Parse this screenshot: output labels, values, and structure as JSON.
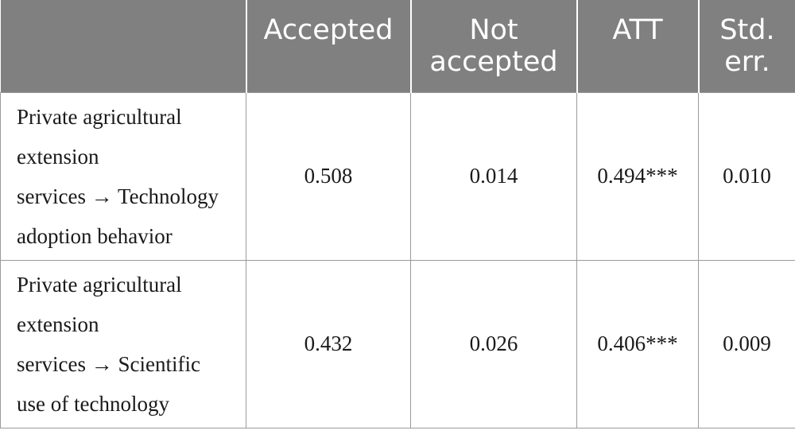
{
  "table": {
    "headers": [
      [
        "",
        ""
      ],
      [
        "Accepted",
        ""
      ],
      [
        "Not",
        "accepted"
      ],
      [
        "ATT",
        ""
      ],
      [
        "Std.",
        "err."
      ]
    ],
    "rows": [
      {
        "label_lines": [
          "Private agricultural",
          "extension",
          "services → Technology",
          "adoption behavior"
        ],
        "accepted": "0.508",
        "not_accepted": "0.014",
        "att": "0.494***",
        "std_err": "0.010"
      },
      {
        "label_lines": [
          "Private agricultural",
          "extension",
          "services → Scientific",
          "use of technology"
        ],
        "accepted": "0.432",
        "not_accepted": "0.026",
        "att": "0.406***",
        "std_err": "0.009"
      }
    ]
  }
}
